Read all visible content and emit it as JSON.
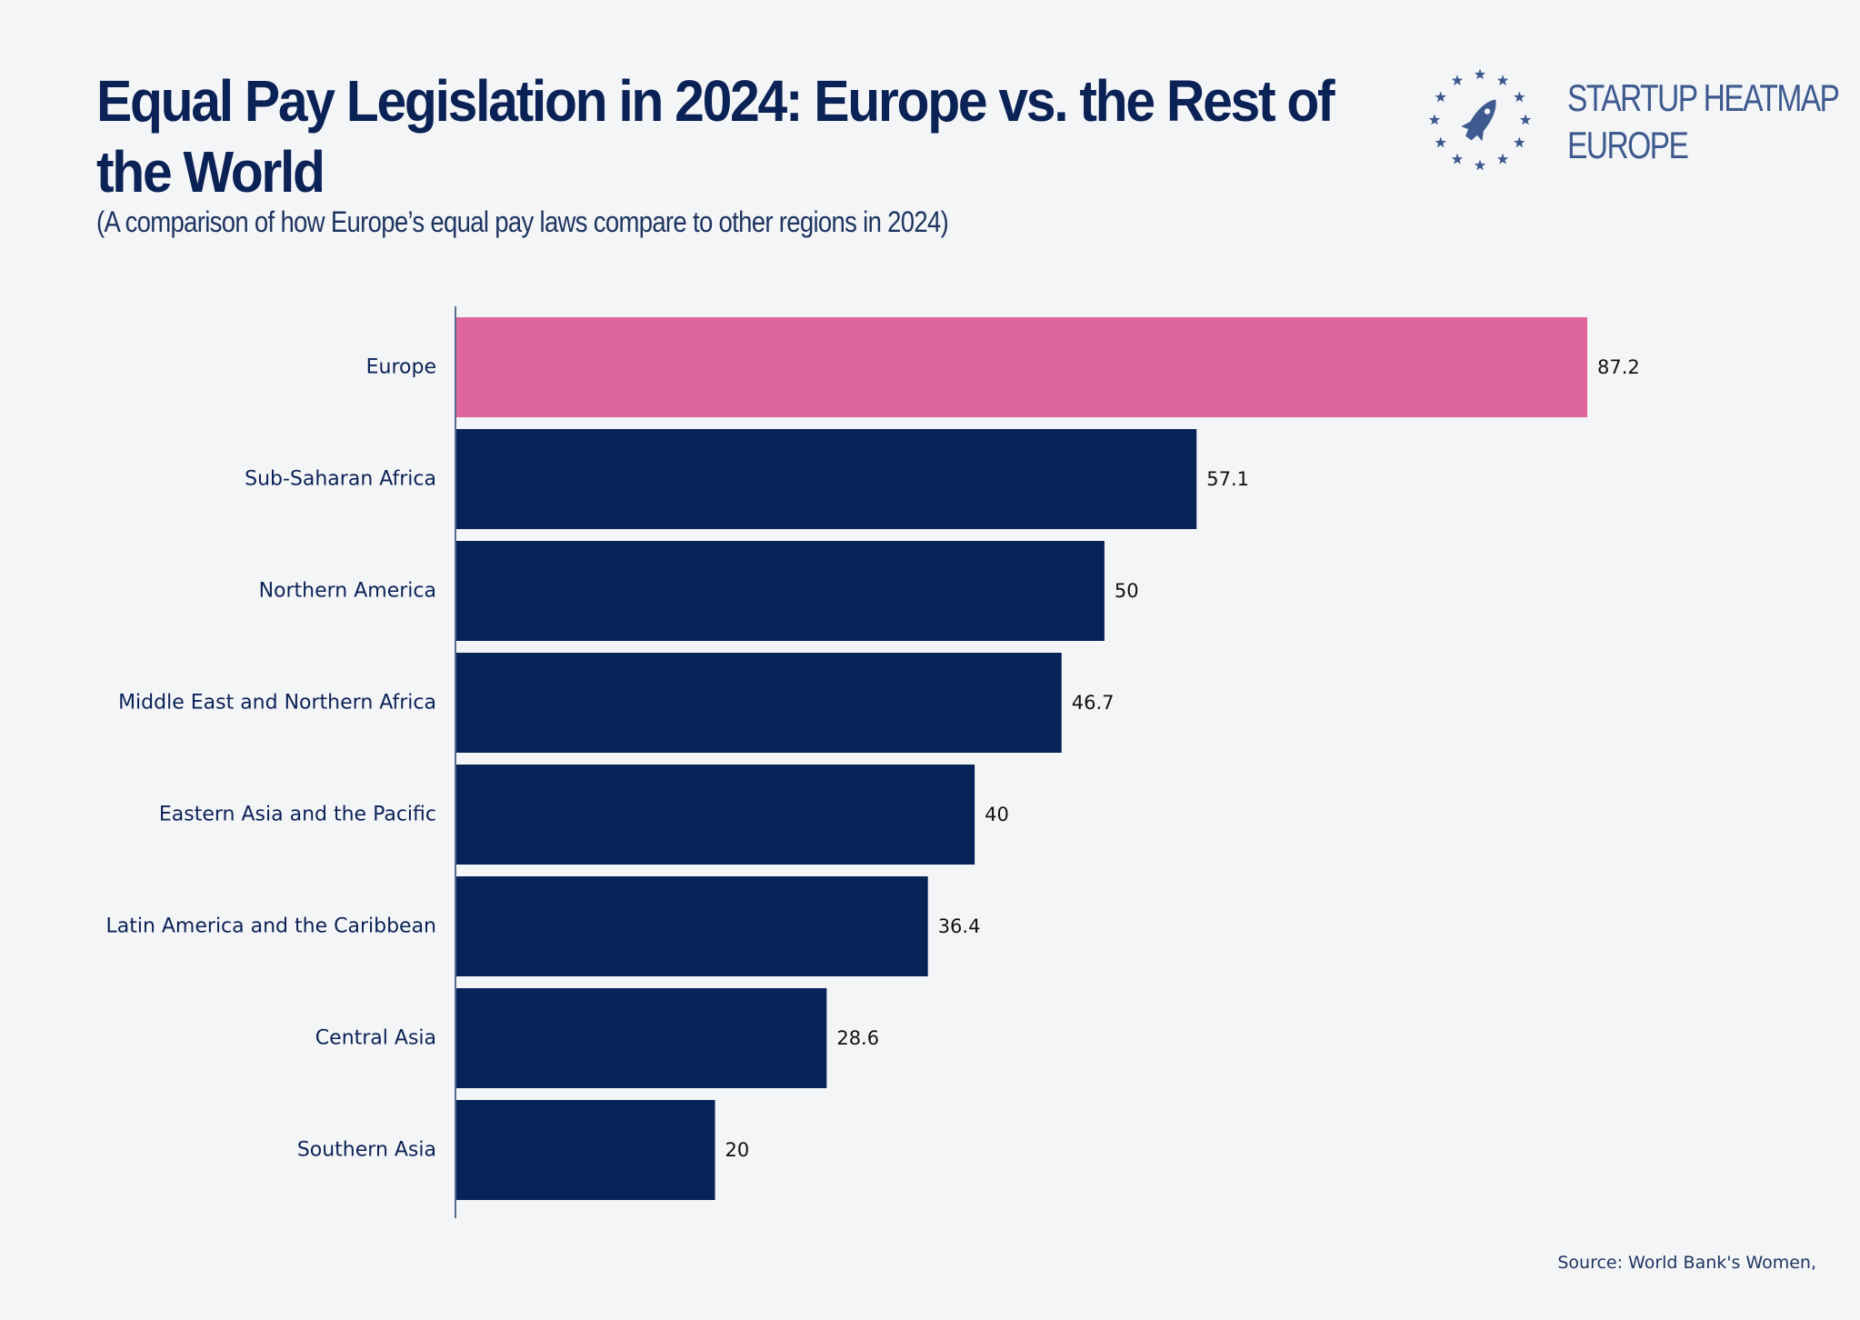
{
  "header": {
    "title": "Equal Pay Legislation in 2024: Europe vs. the Rest of the World",
    "subtitle": "(A comparison of how Europe’s equal pay laws compare to other regions in 2024)"
  },
  "logo": {
    "line1": "STARTUP HEATMAP",
    "line2": "EUROPE",
    "icon": "rocket-in-star-circle-icon",
    "color": "#3e5a8e"
  },
  "footer": {
    "source": "Source: World Bank's Women,"
  },
  "chart_data": {
    "type": "bar",
    "orientation": "horizontal",
    "title": "Equal Pay Legislation in 2024: Europe vs. the Rest of the World",
    "subtitle": "(A comparison of how Europe’s equal pay laws compare to other regions in 2024)",
    "xlabel": "",
    "ylabel": "",
    "categories": [
      "Europe",
      "Sub-Saharan Africa",
      "Northern America",
      "Middle East and Northern Africa",
      "Eastern Asia and the Pacific",
      "Latin America and the Caribbean",
      "Central Asia",
      "Southern Asia"
    ],
    "values": [
      87.2,
      57.1,
      50,
      46.7,
      40,
      36.4,
      28.6,
      20
    ],
    "value_labels": [
      "87.2",
      "57.1",
      "50",
      "46.7",
      "40",
      "36.4",
      "28.6",
      "20"
    ],
    "highlight": "Europe",
    "colors": {
      "highlight": "#df659d",
      "default": "#082358",
      "axis": "#5a6b8c"
    },
    "xlim": [
      0,
      87.2
    ],
    "grid": false,
    "legend": "none",
    "source": "Source: World Bank's Women,"
  }
}
